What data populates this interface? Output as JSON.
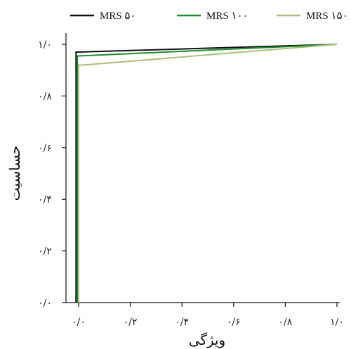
{
  "chart_data": {
    "type": "line",
    "xlabel": "ویژگی",
    "ylabel": "حساسیت",
    "xlim": [
      -0.02,
      1.0
    ],
    "ylim": [
      0.0,
      1.0
    ],
    "x_ticks": [
      0.0,
      0.2,
      0.4,
      0.6,
      0.8,
      1.0
    ],
    "y_ticks": [
      0.0,
      0.2,
      0.4,
      0.6,
      0.8,
      1.0
    ],
    "x_tick_labels": [
      "۰/۰",
      "۰/۲",
      "۰/۴",
      "۰/۶",
      "۰/۸",
      "۱/۰"
    ],
    "y_tick_labels": [
      "۰/۰",
      "۰/۲",
      "۰/۴",
      "۰/۶",
      "۰/۸",
      "۱/۰"
    ],
    "grid": false,
    "legend_position": "top",
    "series": [
      {
        "name": "MRS ۵۰",
        "color": "#111111",
        "x": [
          -0.01,
          -0.01,
          0.0,
          0.0,
          1.0
        ],
        "y": [
          0.0,
          0.97,
          0.97,
          0.97,
          1.0
        ]
      },
      {
        "name": "MRS ۱۰۰",
        "color": "#1f8a2e",
        "x": [
          -0.005,
          -0.005,
          0.0,
          0.0,
          1.0
        ],
        "y": [
          0.0,
          0.955,
          0.955,
          0.955,
          1.0
        ]
      },
      {
        "name": "MRS ۱۵۰",
        "color": "#a8bf7a",
        "x": [
          0.0,
          0.0,
          0.02,
          1.0
        ],
        "y": [
          0.0,
          0.92,
          0.92,
          1.0
        ]
      }
    ]
  }
}
